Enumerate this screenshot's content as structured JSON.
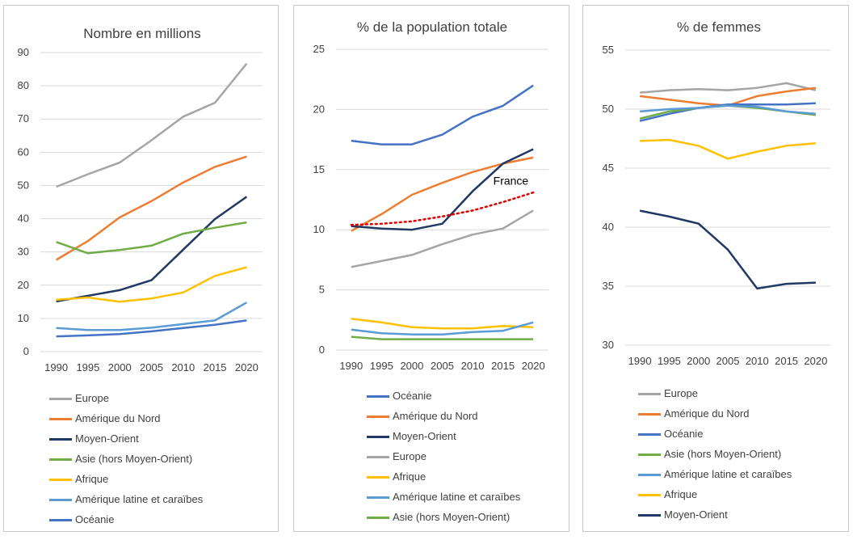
{
  "chart_data": [
    {
      "type": "line",
      "title": "Nombre en millions",
      "xlabel": "",
      "ylabel": "",
      "x": [
        1990,
        1995,
        2000,
        2005,
        2010,
        2015,
        2020
      ],
      "ylim": [
        0,
        90
      ],
      "yticks": [
        0,
        10,
        20,
        30,
        40,
        50,
        60,
        70,
        80,
        90
      ],
      "grid": true,
      "legend_position": "bottom",
      "series": [
        {
          "name": "Europe",
          "color": "#a5a5a5",
          "values": [
            49.6,
            53.4,
            56.9,
            63.6,
            70.7,
            74.9,
            86.7
          ]
        },
        {
          "name": "Amérique du Nord",
          "color": "#ed7d31",
          "values": [
            27.6,
            33.3,
            40.4,
            45.3,
            50.9,
            55.6,
            58.7
          ]
        },
        {
          "name": "Moyen-Orient",
          "color": "#203864",
          "values": [
            15.1,
            16.8,
            18.5,
            21.5,
            30.7,
            39.9,
            46.6
          ]
        },
        {
          "name": "Asie (hors Moyen-Orient)",
          "color": "#70ad47",
          "values": [
            33.0,
            29.6,
            30.6,
            31.9,
            35.5,
            37.3,
            38.9
          ]
        },
        {
          "name": "Afrique",
          "color": "#ffc000",
          "values": [
            15.6,
            16.3,
            15.0,
            16.0,
            17.8,
            22.8,
            25.4
          ]
        },
        {
          "name": "Amérique latine et caraïbes",
          "color": "#5b9bd5",
          "values": [
            7.1,
            6.5,
            6.5,
            7.2,
            8.3,
            9.4,
            14.8
          ]
        },
        {
          "name": "Océanie",
          "color": "#4472c4",
          "values": [
            4.6,
            4.9,
            5.3,
            6.1,
            7.1,
            8.1,
            9.4
          ]
        }
      ]
    },
    {
      "type": "line",
      "title": "% de la population totale",
      "xlabel": "",
      "ylabel": "",
      "x": [
        1990,
        1995,
        2000,
        2005,
        2010,
        2015,
        2020
      ],
      "ylim": [
        0,
        25
      ],
      "yticks": [
        0,
        5,
        10,
        15,
        20,
        25
      ],
      "grid": true,
      "legend_position": "bottom",
      "annotation": {
        "text": "France"
      },
      "overlay_series": {
        "color": "#e00000",
        "values": [
          10.4,
          10.5,
          10.7,
          11.1,
          11.6,
          12.3,
          13.1
        ]
      },
      "series": [
        {
          "name": "Océanie",
          "color": "#4472c4",
          "values": [
            17.4,
            17.1,
            17.1,
            17.9,
            19.4,
            20.3,
            22.0
          ]
        },
        {
          "name": "Amérique du Nord",
          "color": "#ed7d31",
          "values": [
            9.9,
            11.3,
            12.9,
            13.9,
            14.8,
            15.5,
            16.0
          ]
        },
        {
          "name": "Moyen-Orient",
          "color": "#203864",
          "values": [
            10.3,
            10.1,
            10.0,
            10.5,
            13.2,
            15.5,
            16.7
          ]
        },
        {
          "name": "Europe",
          "color": "#a5a5a5",
          "values": [
            6.9,
            7.4,
            7.9,
            8.8,
            9.6,
            10.1,
            11.6
          ]
        },
        {
          "name": "Afrique",
          "color": "#ffc000",
          "values": [
            2.6,
            2.3,
            1.9,
            1.8,
            1.8,
            2.0,
            1.9
          ]
        },
        {
          "name": "Amérique latine et caraïbes",
          "color": "#5b9bd5",
          "values": [
            1.7,
            1.4,
            1.3,
            1.3,
            1.5,
            1.6,
            2.3
          ]
        },
        {
          "name": "Asie (hors Moyen-Orient)",
          "color": "#70ad47",
          "values": [
            1.1,
            0.9,
            0.9,
            0.9,
            0.9,
            0.9,
            0.9
          ]
        }
      ]
    },
    {
      "type": "line",
      "title": "% de femmes",
      "xlabel": "",
      "ylabel": "",
      "x": [
        1990,
        1995,
        2000,
        2005,
        2010,
        2015,
        2020
      ],
      "ylim": [
        30,
        55
      ],
      "yticks": [
        30,
        35,
        40,
        45,
        50,
        55
      ],
      "grid": true,
      "legend_position": "bottom",
      "series": [
        {
          "name": "Europe",
          "color": "#a5a5a5",
          "values": [
            51.4,
            51.6,
            51.7,
            51.6,
            51.8,
            52.2,
            51.6
          ]
        },
        {
          "name": "Amérique du Nord",
          "color": "#ed7d31",
          "values": [
            51.1,
            50.8,
            50.5,
            50.3,
            51.1,
            51.5,
            51.8
          ]
        },
        {
          "name": "Océanie",
          "color": "#4472c4",
          "values": [
            49.0,
            49.6,
            50.1,
            50.4,
            50.4,
            50.4,
            50.5
          ]
        },
        {
          "name": "Asie (hors Moyen-Orient)",
          "color": "#70ad47",
          "values": [
            49.2,
            49.8,
            50.1,
            50.3,
            50.1,
            49.8,
            49.5
          ]
        },
        {
          "name": "Amérique latine et caraïbes",
          "color": "#5b9bd5",
          "values": [
            49.8,
            50.0,
            50.1,
            50.3,
            50.2,
            49.8,
            49.6
          ]
        },
        {
          "name": "Afrique",
          "color": "#ffc000",
          "values": [
            47.3,
            47.4,
            46.9,
            45.8,
            46.4,
            46.9,
            47.1
          ]
        },
        {
          "name": "Moyen-Orient",
          "color": "#203864",
          "values": [
            41.4,
            40.9,
            40.3,
            38.1,
            34.8,
            35.2,
            35.3
          ]
        }
      ]
    }
  ]
}
